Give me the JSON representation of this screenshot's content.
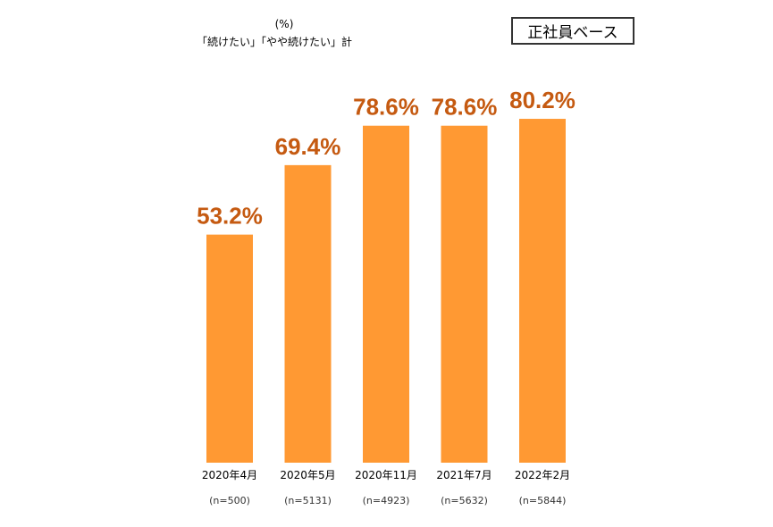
{
  "header": {
    "unit": "(%)",
    "note": "「続けたい」「やや続けたい」計",
    "base_label": "正社員ベース"
  },
  "chart_data": {
    "type": "bar",
    "categories": [
      "2020年4月",
      "2020年5月",
      "2020年11月",
      "2021年7月",
      "2022年2月"
    ],
    "sample_sizes": [
      "(n=500)",
      "(n=5131)",
      "(n=4923)",
      "(n=5632)",
      "(n=5844)"
    ],
    "values": [
      53.2,
      69.4,
      78.6,
      78.6,
      80.2
    ],
    "value_labels": [
      "53.2%",
      "69.4%",
      "78.6%",
      "78.6%",
      "80.2%"
    ],
    "ylim": [
      0,
      100
    ],
    "bar_color": "#FF9933",
    "label_color": "#C55A11",
    "grid": false,
    "legend": "none"
  }
}
